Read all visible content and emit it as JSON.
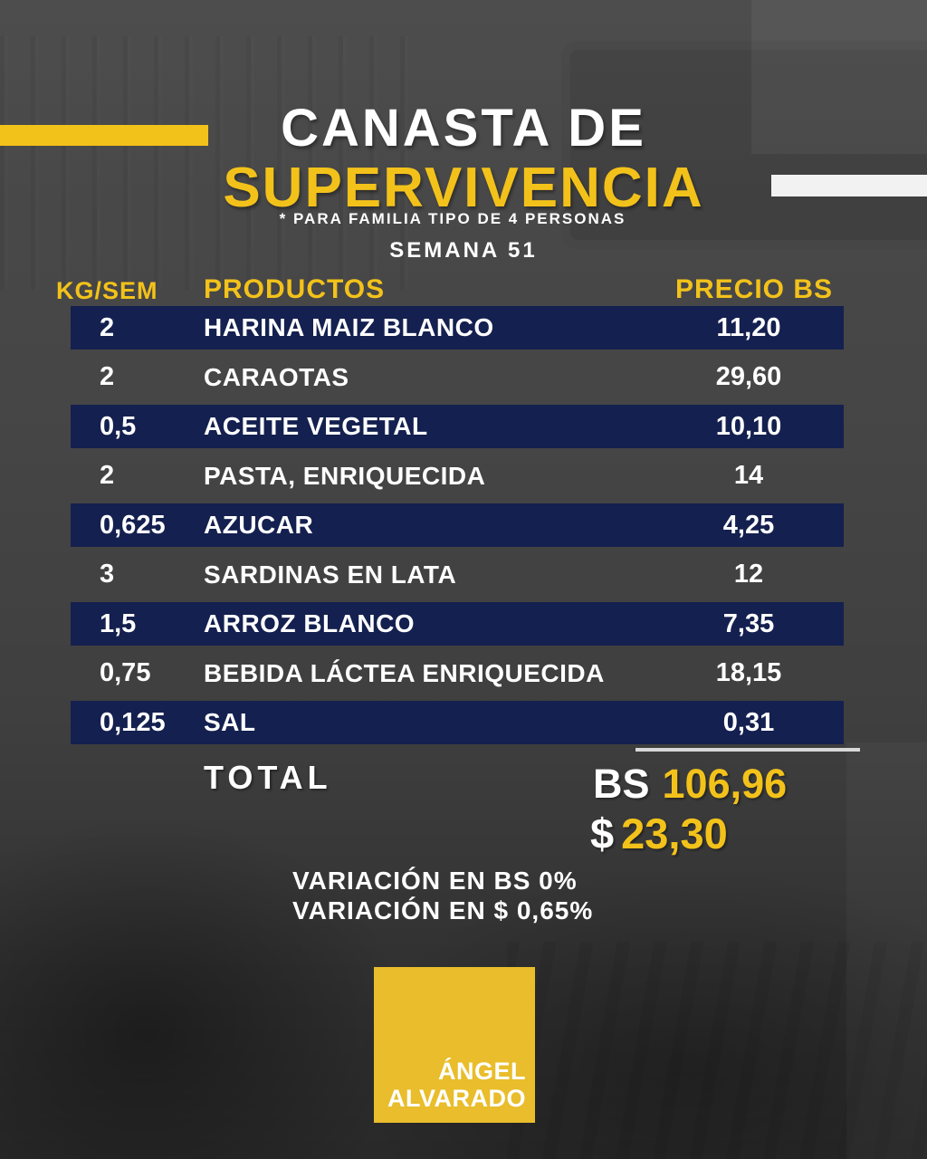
{
  "header": {
    "title_line1": "CANASTA DE",
    "title_line2": "SUPERVIVENCIA",
    "subtitle": "* PARA FAMILIA TIPO DE 4 PERSONAS",
    "week": "SEMANA 51"
  },
  "table": {
    "headers": {
      "qty": "KG/SEM",
      "product": "PRODUCTOS",
      "price": "PRECIO BS"
    },
    "rows": [
      {
        "qty": "2",
        "product": "HARINA MAIZ BLANCO",
        "price": "11,20"
      },
      {
        "qty": "2",
        "product": "CARAOTAS",
        "price": "29,60"
      },
      {
        "qty": "0,5",
        "product": "ACEITE VEGETAL",
        "price": "10,10"
      },
      {
        "qty": "2",
        "product": "PASTA, ENRIQUECIDA",
        "price": "14"
      },
      {
        "qty": "0,625",
        "product": "AZUCAR",
        "price": "4,25"
      },
      {
        "qty": "3",
        "product": "SARDINAS EN LATA",
        "price": "12"
      },
      {
        "qty": "1,5",
        "product": "ARROZ BLANCO",
        "price": "7,35"
      },
      {
        "qty": "0,75",
        "product": "BEBIDA LÁCTEA ENRIQUECIDA",
        "price": "18,15"
      },
      {
        "qty": "0,125",
        "product": "SAL",
        "price": "0,31"
      }
    ]
  },
  "total": {
    "label": "TOTAL",
    "bs_prefix": "BS",
    "bs_value": "106,96",
    "usd_prefix": "$",
    "usd_value": "23,30"
  },
  "variation": {
    "line1": "VARIACIÓN EN BS 0%",
    "line2": "VARIACIÓN EN $ 0,65%"
  },
  "logo": {
    "line1": "ÁNGEL",
    "line2": "ALVARADO"
  },
  "colors": {
    "accent_yellow": "#F3C21A",
    "row_navy": "#14204F",
    "logo_yellow": "#E9BD2B",
    "bar_white": "#F2F2F2",
    "background_gray": "#464646",
    "text_white": "#FFFFFF"
  },
  "chart_data": {
    "type": "table",
    "title": "CANASTA DE SUPERVIVENCIA",
    "subtitle": "* PARA FAMILIA TIPO DE 4 PERSONAS",
    "period": "SEMANA 51",
    "columns": [
      "KG/SEM",
      "PRODUCTOS",
      "PRECIO BS"
    ],
    "rows": [
      [
        "2",
        "HARINA MAIZ BLANCO",
        "11,20"
      ],
      [
        "2",
        "CARAOTAS",
        "29,60"
      ],
      [
        "0,5",
        "ACEITE VEGETAL",
        "10,10"
      ],
      [
        "2",
        "PASTA, ENRIQUECIDA",
        "14"
      ],
      [
        "0,625",
        "AZUCAR",
        "4,25"
      ],
      [
        "3",
        "SARDINAS EN LATA",
        "12"
      ],
      [
        "1,5",
        "ARROZ BLANCO",
        "7,35"
      ],
      [
        "0,75",
        "BEBIDA LÁCTEA ENRIQUECIDA",
        "18,15"
      ],
      [
        "0,125",
        "SAL",
        "0,31"
      ]
    ],
    "totals": {
      "bs": "106,96",
      "usd": "23,30"
    },
    "variation": {
      "bs_pct": "0%",
      "usd_pct": "0,65%"
    }
  }
}
